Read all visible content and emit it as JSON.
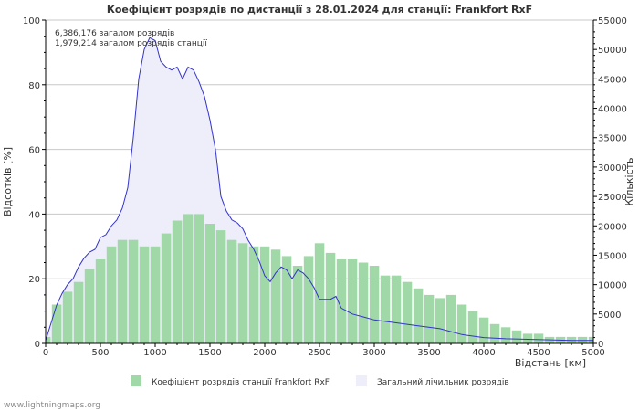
{
  "chart_data": {
    "type": "area",
    "title": "Коефіцієнт розрядів по дистанції з 28.01.2024 для станції: Frankfort RxF",
    "xlabel": "Відстань   [км]",
    "ylabel_left": "Відсотків   [%]",
    "ylabel_right": "Кількість",
    "xlim": [
      0,
      5000
    ],
    "ylim_left": [
      0,
      100
    ],
    "ylim_right": [
      0,
      55000
    ],
    "x_ticks": [
      0,
      500,
      1000,
      1500,
      2000,
      2500,
      3000,
      3500,
      4000,
      4500,
      5000
    ],
    "y_left_ticks": [
      0,
      20,
      40,
      60,
      80,
      100
    ],
    "y_right_ticks": [
      0,
      5000,
      10000,
      15000,
      20000,
      25000,
      30000,
      35000,
      40000,
      45000,
      50000,
      55000
    ],
    "x_tick_labels": [
      "0",
      "500",
      "1000",
      "1500",
      "2000",
      "2500",
      "3000",
      "3500",
      "4000",
      "4500",
      "5000"
    ],
    "y_left_tick_labels": [
      "0",
      "20",
      "40",
      "60",
      "80",
      "100"
    ],
    "y_right_tick_labels": [
      "0",
      "5000",
      "10000",
      "15000",
      "20000",
      "25000",
      "30000",
      "35000",
      "40000",
      "45000",
      "50000",
      "55000"
    ],
    "grid": true,
    "annotations": [
      "6,386,176 загалом розрядів",
      "1,979,214 загалом розрядів станції"
    ],
    "series": [
      {
        "name": "Коефіцієнт розрядів станції Frankfort RxF",
        "kind": "bar",
        "axis": "left",
        "color": "#a0d8a8",
        "x": [
          0,
          100,
          200,
          300,
          400,
          500,
          600,
          700,
          800,
          900,
          1000,
          1100,
          1200,
          1300,
          1400,
          1500,
          1600,
          1700,
          1800,
          1900,
          2000,
          2100,
          2200,
          2300,
          2400,
          2500,
          2600,
          2700,
          2800,
          2900,
          3000,
          3100,
          3200,
          3300,
          3400,
          3500,
          3600,
          3700,
          3800,
          3900,
          4000,
          4100,
          4200,
          4300,
          4400,
          4500,
          4600,
          4700,
          4800,
          4900,
          5000
        ],
        "values": [
          2,
          12,
          16,
          19,
          23,
          26,
          30,
          32,
          32,
          30,
          30,
          34,
          38,
          40,
          40,
          37,
          35,
          32,
          31,
          30,
          30,
          29,
          27,
          24,
          27,
          31,
          28,
          26,
          26,
          25,
          24,
          21,
          21,
          19,
          17,
          15,
          14,
          15,
          12,
          10,
          8,
          6,
          5,
          4,
          3,
          3,
          2,
          2,
          2,
          2,
          2
        ]
      },
      {
        "name": "Загальний лічильник розрядів",
        "kind": "line",
        "axis": "right",
        "color": "#3333cc",
        "fill": "#eeeefa",
        "x": [
          0,
          50,
          100,
          150,
          200,
          250,
          300,
          350,
          400,
          450,
          500,
          550,
          600,
          650,
          700,
          750,
          800,
          850,
          900,
          950,
          1000,
          1050,
          1100,
          1150,
          1200,
          1250,
          1300,
          1350,
          1400,
          1450,
          1500,
          1550,
          1600,
          1650,
          1700,
          1750,
          1800,
          1850,
          1900,
          1950,
          2000,
          2050,
          2100,
          2150,
          2200,
          2250,
          2300,
          2350,
          2400,
          2450,
          2500,
          2550,
          2600,
          2650,
          2700,
          2750,
          2800,
          2900,
          3000,
          3200,
          3400,
          3600,
          3800,
          4000,
          4200,
          4400,
          4600,
          4800,
          5000
        ],
        "values": [
          500,
          3500,
          6500,
          8500,
          10000,
          11000,
          13000,
          14500,
          15500,
          16000,
          18000,
          18500,
          20000,
          21000,
          23000,
          26500,
          35000,
          45000,
          50000,
          52000,
          51500,
          48000,
          47000,
          46500,
          47000,
          45000,
          47000,
          46500,
          44500,
          42000,
          38000,
          33000,
          25000,
          22500,
          21000,
          20500,
          19500,
          17500,
          16000,
          14000,
          11500,
          10500,
          12000,
          13000,
          12500,
          11000,
          12500,
          12000,
          11000,
          9500,
          7500,
          7500,
          7500,
          8000,
          6000,
          5500,
          5000,
          4500,
          4000,
          3500,
          3000,
          2500,
          1500,
          1000,
          800,
          700,
          600,
          500,
          500
        ]
      }
    ],
    "legend": [
      "Коефіцієнт розрядів станції Frankfort RxF",
      "Загальний лічильник розрядів"
    ],
    "legend_position": "bottom"
  },
  "footer": {
    "watermark": "www.lightningmaps.org"
  }
}
